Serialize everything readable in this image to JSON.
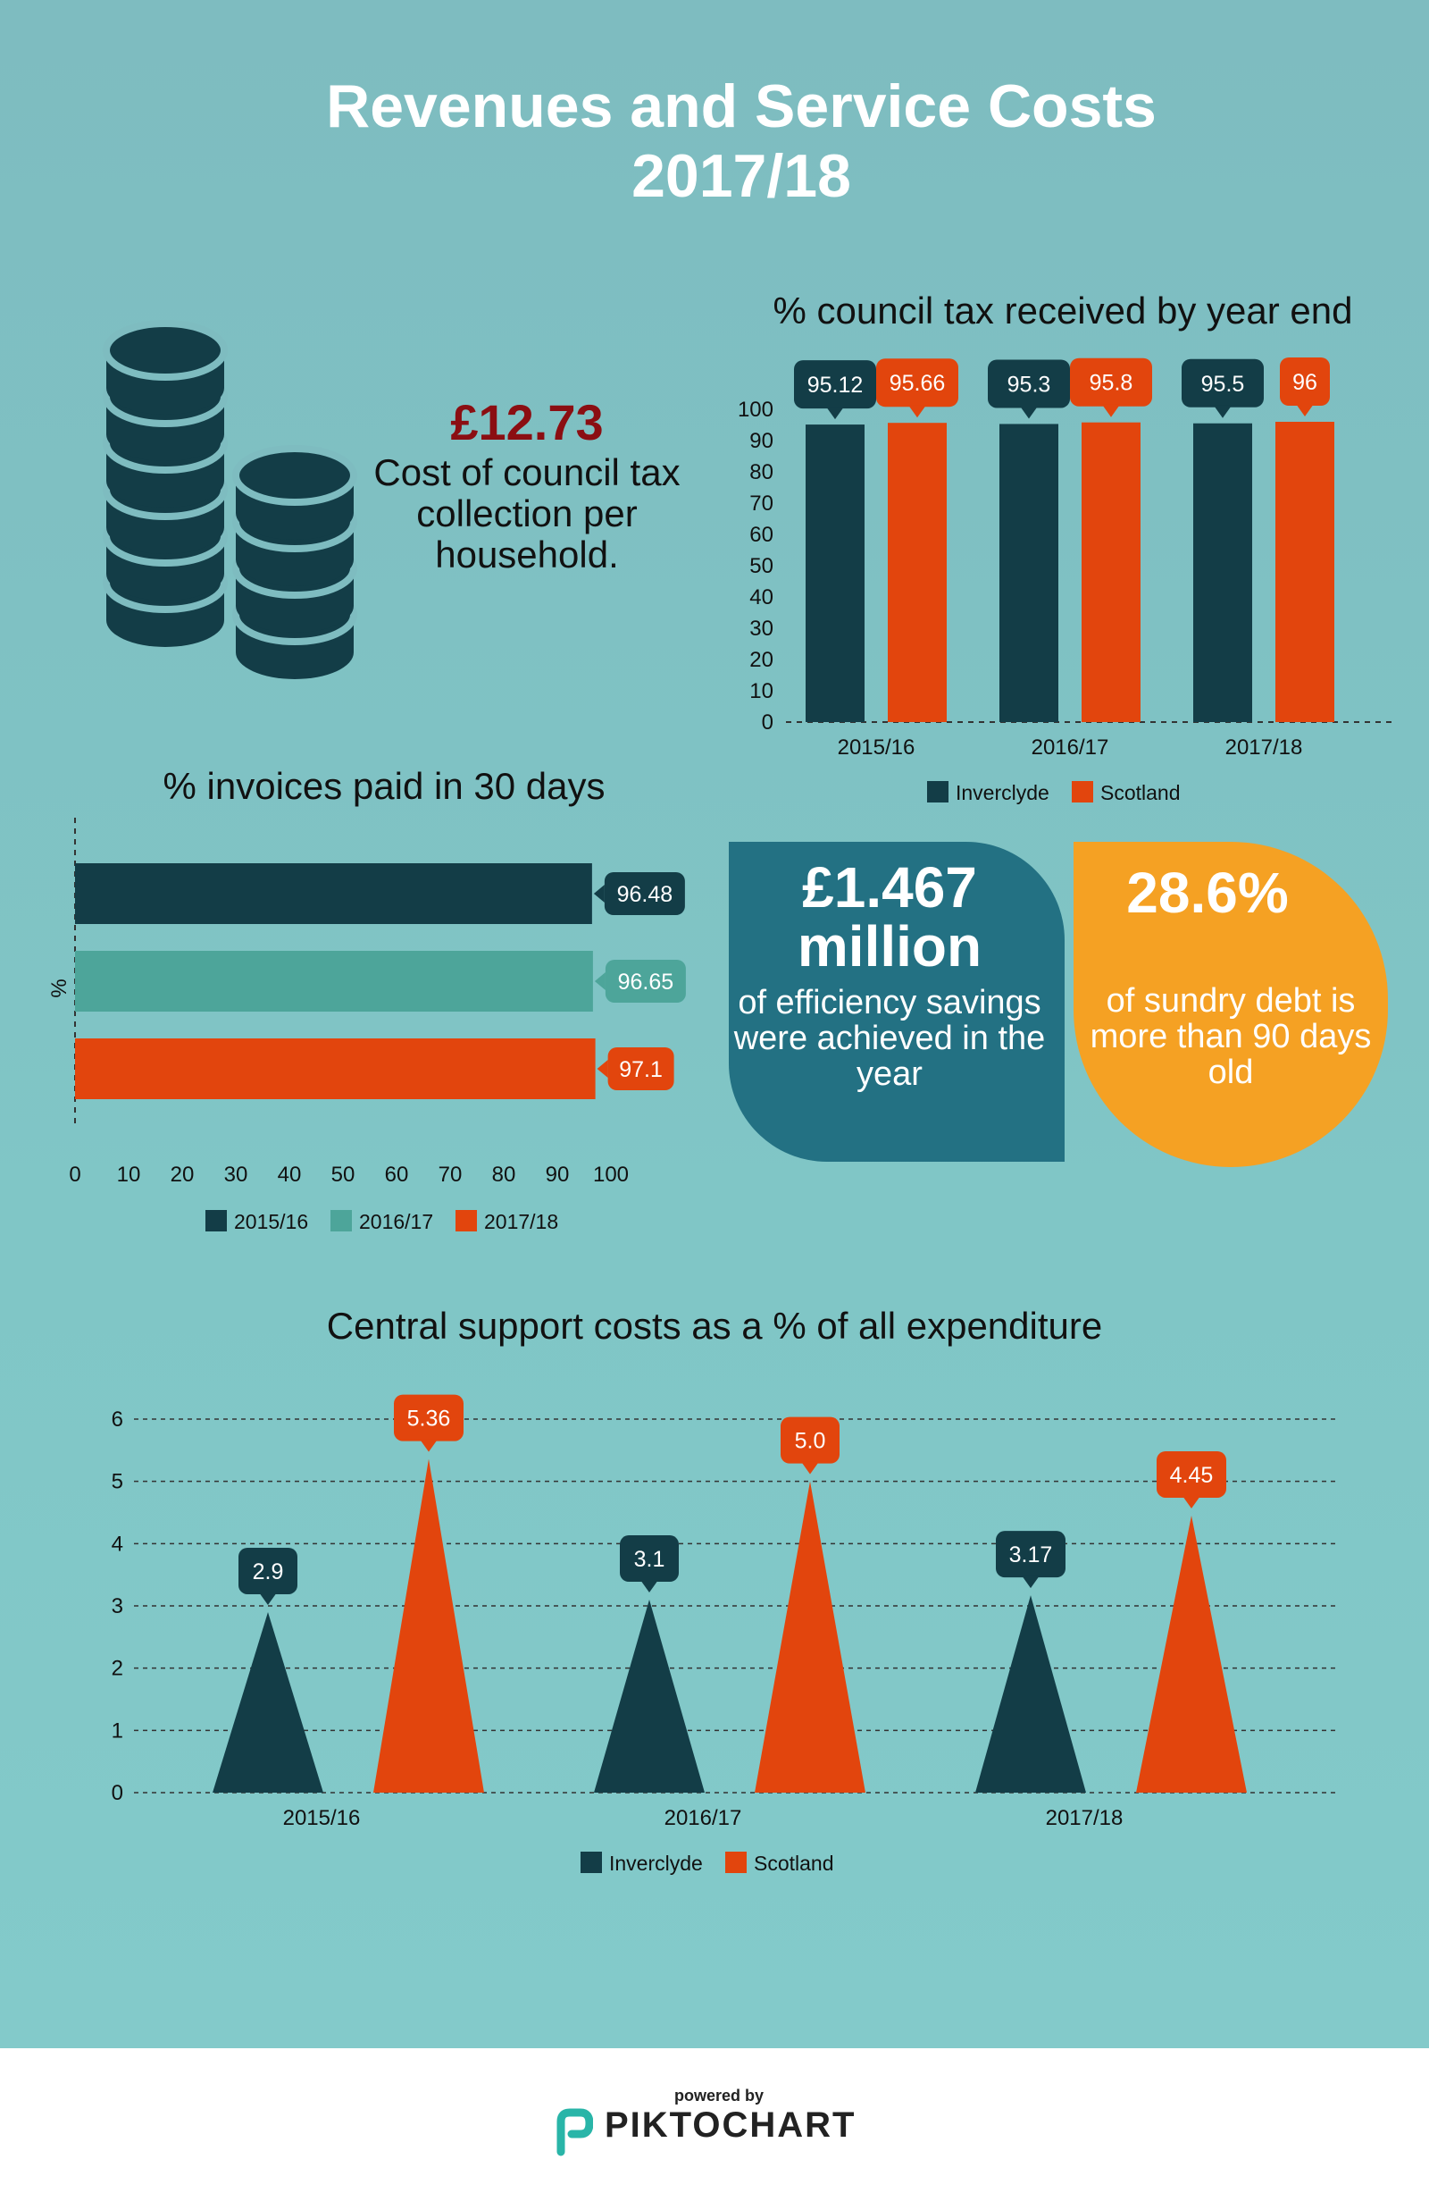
{
  "title_line1": "Revenues and Service Costs",
  "title_line2": "2017/18",
  "colors": {
    "inverclyde": "#133d47",
    "scotland": "#e2450d",
    "mid_teal": "#4da59a",
    "efficiency_box": "#237183",
    "debt_box": "#f5a123",
    "cost_value": "#8b0e12"
  },
  "cost_block": {
    "icon": "coins-icon",
    "value": "£12.73",
    "text": "Cost of council tax collection per household."
  },
  "efficiency": {
    "value_line1": "£1.467",
    "value_line2": "million",
    "text": "of efficiency savings were achieved in the year"
  },
  "sundry_debt": {
    "value": "28.6%",
    "text": "of sundry debt is more than 90 days old"
  },
  "footer": {
    "powered_by": "powered by",
    "brand": "PIKTOCHART",
    "logo_icon": "piktochart-logo-icon"
  },
  "chart_data": [
    {
      "type": "bar",
      "title": "% council tax received by year end",
      "categories": [
        "2015/16",
        "2016/17",
        "2017/18"
      ],
      "series": [
        {
          "name": "Inverclyde",
          "values": [
            95.12,
            95.3,
            95.5
          ],
          "labels": [
            "95.12",
            "95.3",
            "95.5"
          ]
        },
        {
          "name": "Scotland",
          "values": [
            95.66,
            95.8,
            96
          ],
          "labels": [
            "95.66",
            "95.8",
            "96"
          ]
        }
      ],
      "ylim": [
        0,
        100
      ],
      "yticks": [
        0,
        10,
        20,
        30,
        40,
        50,
        60,
        70,
        80,
        90,
        100
      ],
      "legend": "bottom"
    },
    {
      "type": "bar",
      "orientation": "horizontal",
      "title": "% invoices paid in 30 days",
      "ylabel": "%",
      "series": [
        {
          "name": "2015/16",
          "value": 96.48,
          "label": "96.48"
        },
        {
          "name": "2016/17",
          "value": 96.65,
          "label": "96.65"
        },
        {
          "name": "2017/18",
          "value": 97.1,
          "label": "97.1"
        }
      ],
      "xlim": [
        0,
        100
      ],
      "xticks": [
        0,
        10,
        20,
        30,
        40,
        50,
        60,
        70,
        80,
        90,
        100
      ],
      "legend": "bottom"
    },
    {
      "type": "bar",
      "mark": "triangle",
      "title": "Central support costs as a % of all expenditure",
      "categories": [
        "2015/16",
        "2016/17",
        "2017/18"
      ],
      "series": [
        {
          "name": "Inverclyde",
          "values": [
            2.9,
            3.1,
            3.17
          ],
          "labels": [
            "2.9",
            "3.1",
            "3.17"
          ]
        },
        {
          "name": "Scotland",
          "values": [
            5.36,
            5.0,
            4.45
          ],
          "labels": [
            "5.36",
            "5.0",
            "4.45"
          ]
        }
      ],
      "ylim": [
        0,
        6
      ],
      "yticks": [
        0,
        1,
        2,
        3,
        4,
        5,
        6
      ],
      "grid": true,
      "legend": "bottom"
    }
  ]
}
